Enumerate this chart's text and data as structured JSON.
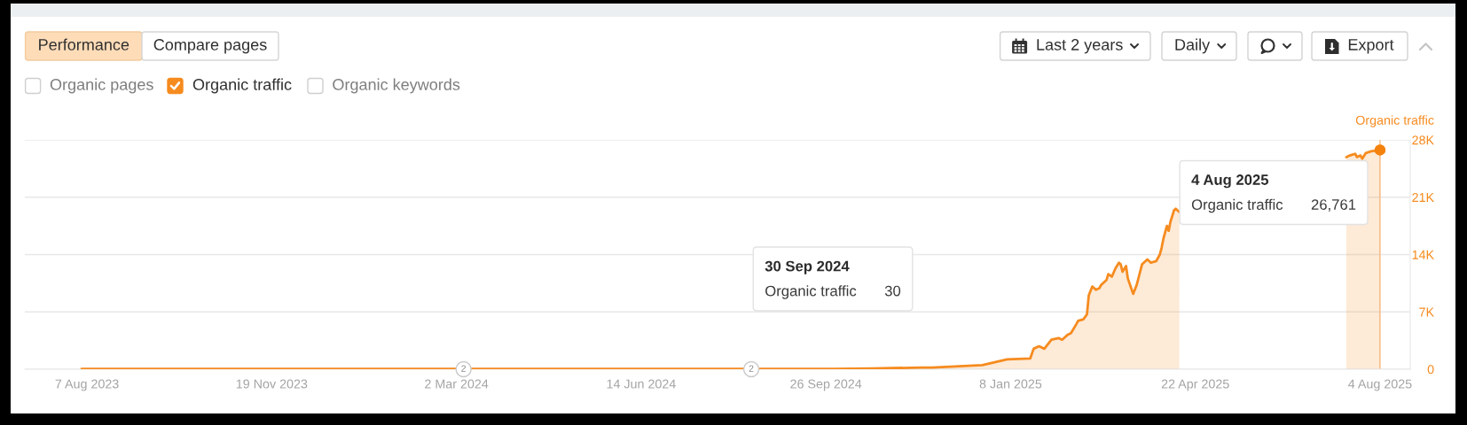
{
  "chart_data": {
    "type": "area",
    "ylabel": "Organic traffic",
    "x": [
      "2023-08-04",
      "2023-11-19",
      "2024-03-02",
      "2024-06-14",
      "2024-09-30",
      "2024-10-22",
      "2024-11-19",
      "2024-11-25",
      "2024-12-23",
      "2024-12-29",
      "2025-01-06",
      "2025-01-19",
      "2025-01-21",
      "2025-01-24",
      "2025-01-27",
      "2025-01-31",
      "2025-02-04",
      "2025-02-06",
      "2025-02-09",
      "2025-02-11",
      "2025-02-14",
      "2025-02-15",
      "2025-02-18",
      "2025-02-20",
      "2025-02-21",
      "2025-02-23",
      "2025-02-25",
      "2025-02-27",
      "2025-02-28",
      "2025-03-03",
      "2025-03-04",
      "2025-03-06",
      "2025-03-08",
      "2025-03-10",
      "2025-03-11",
      "2025-03-12",
      "2025-03-14",
      "2025-03-15",
      "2025-03-18",
      "2025-03-20",
      "2025-03-23",
      "2025-03-26",
      "2025-03-28",
      "2025-03-31",
      "2025-04-02",
      "2025-04-03",
      "2025-04-04",
      "2025-04-06",
      "2025-04-07",
      "2025-04-08",
      "2025-04-10",
      "2025-04-11",
      "2025-04-13",
      "2025-05-20",
      "2025-07-16",
      "2025-07-18",
      "2025-07-21",
      "2025-07-22",
      "2025-07-24",
      "2025-07-25",
      "2025-07-27",
      "2025-07-30",
      "2025-08-04"
    ],
    "series": [
      {
        "name": "Organic traffic",
        "color": "#f68b1f",
        "values": [
          30,
          30,
          30,
          30,
          30,
          100,
          200,
          200,
          500,
          800,
          1200,
          1300,
          2500,
          2800,
          2500,
          3600,
          3800,
          3600,
          4200,
          4400,
          5500,
          5900,
          6100,
          6700,
          9000,
          10100,
          9700,
          9900,
          10300,
          10900,
          11600,
          11300,
          12300,
          13000,
          12800,
          11900,
          12600,
          11100,
          9200,
          10300,
          12800,
          13400,
          13000,
          13200,
          14000,
          14800,
          15900,
          17500,
          16900,
          18000,
          19400,
          19600,
          19200,
          null,
          25900,
          26100,
          26300,
          25900,
          26100,
          25700,
          26400,
          26600,
          26761
        ]
      },
      {
        "type": "scatter",
        "color": "#f4820c",
        "marker": "circle",
        "x": [
          "2025-08-04"
        ],
        "values": [
          26761
        ]
      }
    ],
    "xlim": [
      "2023-07-03",
      "2025-08-21"
    ],
    "xticks": [
      {
        "value": "2023-08-07",
        "label": "7 Aug 2023"
      },
      {
        "value": "2023-11-19",
        "label": "19 Nov 2023"
      },
      {
        "value": "2024-03-02",
        "label": "2 Mar 2024"
      },
      {
        "value": "2024-06-14",
        "label": "14 Jun 2024"
      },
      {
        "value": "2024-09-26",
        "label": "26 Sep 2024"
      },
      {
        "value": "2025-01-08",
        "label": "8 Jan 2025"
      },
      {
        "value": "2025-04-22",
        "label": "22 Apr 2025"
      },
      {
        "value": "2025-08-04",
        "label": "4 Aug 2025"
      }
    ],
    "ylim": [
      0,
      28000
    ],
    "yticks": [
      0,
      {
        "value": 7000,
        "label": "7K"
      },
      {
        "value": 14000,
        "label": "14K"
      },
      {
        "value": 21000,
        "label": "21K"
      },
      {
        "value": 28000,
        "label": "28K"
      }
    ],
    "grid": "y",
    "legend": "top left",
    "ref_lines": [
      {
        "axis": "x",
        "value": "2025-08-04",
        "color": "#f6c79a"
      }
    ],
    "annotations": [
      "Performance",
      "Compare pages",
      "Organic pages",
      "Organic keywords",
      "Last 2 years",
      "Daily",
      "Export",
      "30 Sep 2024",
      "Organic traffic",
      "30",
      "4 Aug 2025",
      "Organic traffic",
      "26,761",
      {
        "text": "2",
        "x": "2024-03-06",
        "y": 0
      },
      {
        "text": "2",
        "x": "2024-08-15",
        "y": 0
      }
    ]
  }
}
